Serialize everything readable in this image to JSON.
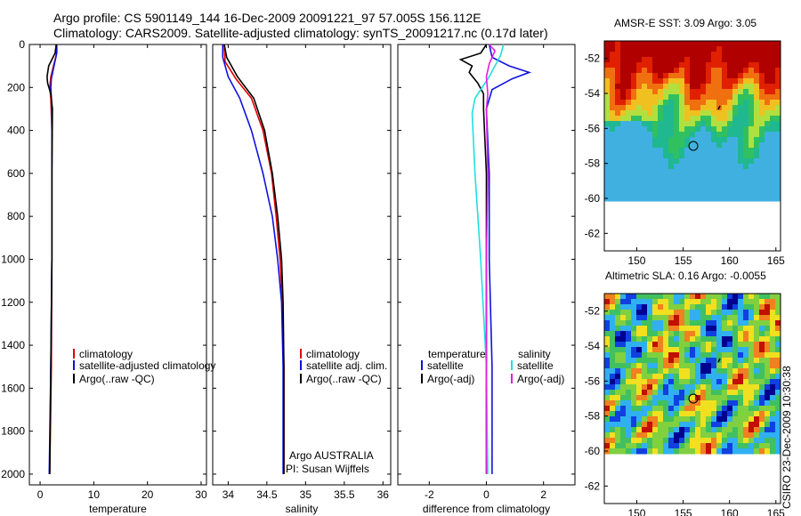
{
  "header": {
    "line1": "Argo profile: CS 5901149_144 16-Dec-2009 20091221_97 57.005S 156.112E",
    "line2": "Climatology: CARS2009. Satellite-adjusted climatology: synTS_20091217.nc (0.17d later)"
  },
  "footer_stamp": "CSIRO 23-Dec-2009 10:30:38",
  "colors": {
    "climatology": "#e00000",
    "satellite": "#1010e0",
    "argo": "#000000",
    "sat_salinity": "#20e0e0",
    "argo_salinity": "#e020e0"
  },
  "chart_data": [
    {
      "id": "temperature",
      "type": "line",
      "xlabel": "temperature",
      "ylabel": "",
      "xlim": [
        -2,
        31
      ],
      "ylim": [
        2050,
        0
      ],
      "xticks": [
        "0",
        "10",
        "20",
        "30"
      ],
      "yticks": [
        "0",
        "200",
        "400",
        "600",
        "800",
        "1000",
        "1200",
        "1400",
        "1600",
        "1800",
        "2000"
      ],
      "legend": [
        "climatology",
        "satellite-adjusted climatology",
        "Argo(..raw -QC)"
      ],
      "series": [
        {
          "name": "climatology",
          "color": "#e00000",
          "points": [
            [
              3.0,
              0
            ],
            [
              3.0,
              50
            ],
            [
              2.5,
              100
            ],
            [
              2.0,
              150
            ],
            [
              1.8,
              200
            ],
            [
              2.0,
              250
            ],
            [
              2.2,
              400
            ],
            [
              2.2,
              1000
            ],
            [
              2.1,
              1500
            ],
            [
              1.8,
              2000
            ]
          ]
        },
        {
          "name": "satellite-adjusted climatology",
          "color": "#1010e0",
          "points": [
            [
              3.1,
              0
            ],
            [
              3.1,
              40
            ],
            [
              2.6,
              100
            ],
            [
              2.1,
              160
            ],
            [
              2.0,
              200
            ],
            [
              2.2,
              300
            ],
            [
              2.2,
              1000
            ],
            [
              2.0,
              1500
            ],
            [
              1.7,
              2000
            ]
          ]
        },
        {
          "name": "Argo(..raw -QC)",
          "color": "#000000",
          "points": [
            [
              3.0,
              0
            ],
            [
              2.8,
              40
            ],
            [
              1.6,
              100
            ],
            [
              1.3,
              150
            ],
            [
              1.4,
              180
            ],
            [
              2.0,
              230
            ],
            [
              2.3,
              300
            ],
            [
              2.2,
              600
            ],
            [
              2.2,
              1000
            ],
            [
              2.0,
              1500
            ],
            [
              1.8,
              2000
            ]
          ]
        }
      ]
    },
    {
      "id": "salinity",
      "type": "line",
      "xlabel": "salinity",
      "ylabel": "",
      "xlim": [
        33.8,
        36.1
      ],
      "ylim": [
        2050,
        0
      ],
      "xticks": [
        "34",
        "34.5",
        "35",
        "35.5",
        "36"
      ],
      "yticks": [
        "0",
        "200",
        "400",
        "600",
        "800",
        "1000",
        "1200",
        "1400",
        "1600",
        "1800",
        "2000"
      ],
      "legend": [
        "climatology",
        "satellite adj. clim.",
        "Argo(..raw -QC)"
      ],
      "annotation": [
        "Argo AUSTRALIA",
        "PI: Susan Wijffels"
      ],
      "series": [
        {
          "name": "climatology",
          "color": "#e00000",
          "points": [
            [
              33.95,
              0
            ],
            [
              33.96,
              80
            ],
            [
              34.1,
              160
            ],
            [
              34.3,
              250
            ],
            [
              34.45,
              400
            ],
            [
              34.56,
              600
            ],
            [
              34.62,
              800
            ],
            [
              34.67,
              1000
            ],
            [
              34.7,
              1200
            ],
            [
              34.72,
              1500
            ],
            [
              34.72,
              2000
            ]
          ]
        },
        {
          "name": "satellite adj. clim.",
          "color": "#1010e0",
          "points": [
            [
              33.93,
              0
            ],
            [
              33.93,
              60
            ],
            [
              34.0,
              150
            ],
            [
              34.15,
              250
            ],
            [
              34.3,
              400
            ],
            [
              34.45,
              600
            ],
            [
              34.57,
              800
            ],
            [
              34.64,
              1000
            ],
            [
              34.69,
              1200
            ],
            [
              34.71,
              1500
            ],
            [
              34.71,
              2000
            ]
          ]
        },
        {
          "name": "Argo(..raw -QC)",
          "color": "#000000",
          "points": [
            [
              33.95,
              0
            ],
            [
              33.98,
              60
            ],
            [
              34.12,
              150
            ],
            [
              34.33,
              250
            ],
            [
              34.47,
              400
            ],
            [
              34.57,
              600
            ],
            [
              34.64,
              800
            ],
            [
              34.69,
              1000
            ],
            [
              34.71,
              1200
            ],
            [
              34.72,
              1500
            ],
            [
              34.72,
              2000
            ]
          ]
        }
      ]
    },
    {
      "id": "difference",
      "type": "line",
      "xlabel": "difference from climatology",
      "ylabel": "",
      "xlim": [
        -3.1,
        3.1
      ],
      "ylim": [
        2050,
        0
      ],
      "xticks": [
        "-2",
        "0",
        "2"
      ],
      "yticks": [
        "0",
        "200",
        "400",
        "600",
        "800",
        "1000",
        "1200",
        "1400",
        "1600",
        "1800",
        "2000"
      ],
      "legend_temperature": {
        "title": "temperature",
        "items": [
          "satellite",
          "Argo(-adj)"
        ]
      },
      "legend_salinity": {
        "title": "salinity",
        "items": [
          "satellite",
          "Argo(-adj)"
        ]
      },
      "series": [
        {
          "name": "temperature satellite",
          "color": "#1010e0",
          "points": [
            [
              0.1,
              0
            ],
            [
              0.2,
              60
            ],
            [
              0.8,
              100
            ],
            [
              1.5,
              130
            ],
            [
              0.9,
              160
            ],
            [
              0.2,
              210
            ],
            [
              0.0,
              300
            ],
            [
              0.1,
              600
            ],
            [
              0.1,
              1000
            ],
            [
              0.2,
              1500
            ],
            [
              0.2,
              2000
            ]
          ]
        },
        {
          "name": "temperature Argo(-adj)",
          "color": "#000000",
          "points": [
            [
              0.0,
              0
            ],
            [
              -0.2,
              40
            ],
            [
              -0.9,
              70
            ],
            [
              -0.5,
              100
            ],
            [
              -0.6,
              130
            ],
            [
              -0.3,
              180
            ],
            [
              -0.1,
              230
            ],
            [
              -0.1,
              300
            ],
            [
              0.0,
              600
            ],
            [
              0.0,
              1000
            ],
            [
              0.0,
              2000
            ]
          ]
        },
        {
          "name": "salinity satellite",
          "color": "#20e0e0",
          "points": [
            [
              0.6,
              0
            ],
            [
              0.5,
              50
            ],
            [
              0.1,
              150
            ],
            [
              -0.4,
              250
            ],
            [
              -0.5,
              320
            ],
            [
              -0.4,
              600
            ],
            [
              -0.2,
              1000
            ],
            [
              0.0,
              1500
            ],
            [
              0.05,
              2000
            ]
          ]
        },
        {
          "name": "salinity Argo(-adj)",
          "color": "#e020e0",
          "points": [
            [
              0.1,
              0
            ],
            [
              0.3,
              30
            ],
            [
              0.1,
              90
            ],
            [
              0.0,
              150
            ],
            [
              0.05,
              230
            ],
            [
              0.0,
              300
            ],
            [
              0.05,
              600
            ],
            [
              0.0,
              1000
            ],
            [
              0.0,
              2000
            ]
          ]
        }
      ]
    },
    {
      "id": "sst_map",
      "type": "heatmap",
      "title": "AMSR-E SST: 3.09 Argo: 3.05",
      "xlim": [
        146.5,
        165.5
      ],
      "ylim": [
        -63,
        -51
      ],
      "xticks": [
        "150",
        "155",
        "160",
        "165"
      ],
      "yticks": [
        "-52",
        "-54",
        "-56",
        "-58",
        "-60",
        "-62"
      ],
      "argo_position": [
        156.1,
        -57.0
      ],
      "data_bottom_lat": -60.1
    },
    {
      "id": "sla_map",
      "type": "heatmap",
      "title": "Altimetric SLA: 0.16 Argo: -0.0055",
      "xlim": [
        146.5,
        165.5
      ],
      "ylim": [
        -63,
        -51
      ],
      "xticks": [
        "150",
        "155",
        "160",
        "165"
      ],
      "yticks": [
        "-52",
        "-54",
        "-56",
        "-58",
        "-60",
        "-62"
      ],
      "argo_position": [
        156.1,
        -57.0
      ],
      "data_bottom_lat": -60.1
    }
  ]
}
